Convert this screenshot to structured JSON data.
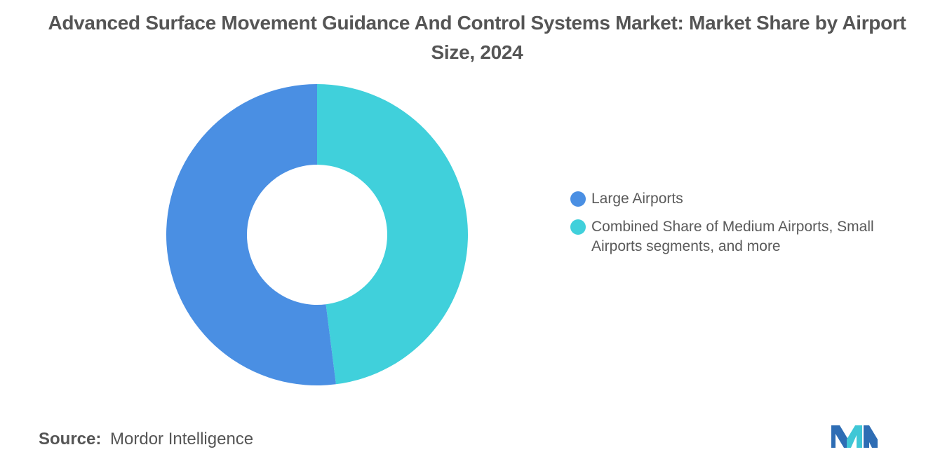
{
  "title": "Advanced Surface Movement Guidance And Control Systems Market: Market Share by Airport Size, 2024",
  "source": {
    "label": "Source:",
    "value": "Mordor Intelligence"
  },
  "logo": {
    "icon": "mordor-intelligence-logo",
    "colors": [
      "#2e6db4",
      "#3fc7d6"
    ]
  },
  "chart_data": {
    "type": "pie",
    "style": "donut",
    "title": "Advanced Surface Movement Guidance And Control Systems Market: Market Share by Airport Size, 2024",
    "legend_position": "right",
    "data_labels": false,
    "start_angle_deg": 0,
    "direction": "clockwise",
    "slices": [
      {
        "label": "Combined Share of Medium Airports, Small Airports segments, and more",
        "value": 48,
        "color": "#40d0db"
      },
      {
        "label": "Large Airports",
        "value": 52,
        "color": "#4a8fe3"
      }
    ],
    "legend": [
      {
        "label": "Large Airports",
        "color": "#4a8fe3"
      },
      {
        "label": "Combined Share of Medium Airports, Small Airports segments, and more",
        "color": "#40d0db"
      }
    ]
  }
}
